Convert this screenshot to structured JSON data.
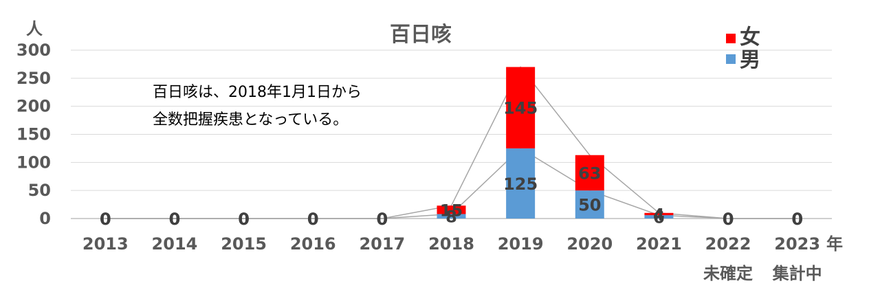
{
  "chart_data": {
    "type": "bar",
    "stacked": true,
    "title": "百日咳",
    "ylabel": "人",
    "xlabel": "年",
    "ylim": [
      0,
      300
    ],
    "yticks": [
      0,
      50,
      100,
      150,
      200,
      250,
      300
    ],
    "categories": [
      "2013",
      "2014",
      "2015",
      "2016",
      "2017",
      "2018",
      "2019",
      "2020",
      "2021",
      "2022",
      "2023"
    ],
    "category_notes": [
      {
        "category": "2022",
        "text": "未確定"
      },
      {
        "category": "2023",
        "text": "集計中"
      }
    ],
    "series": [
      {
        "name": "男",
        "color": "#5B9BD5",
        "values": [
          0,
          0,
          0,
          0,
          0,
          8,
          125,
          50,
          6,
          0,
          0
        ]
      },
      {
        "name": "女",
        "color": "#FF0000",
        "values": [
          0,
          0,
          0,
          0,
          0,
          15,
          145,
          63,
          4,
          0,
          0
        ]
      }
    ],
    "legend_position": "top-right",
    "grid": true,
    "series_lines": true,
    "annotation": [
      "百日咳は、2018年1月1日から",
      "全数把握疾患となっている。"
    ]
  }
}
